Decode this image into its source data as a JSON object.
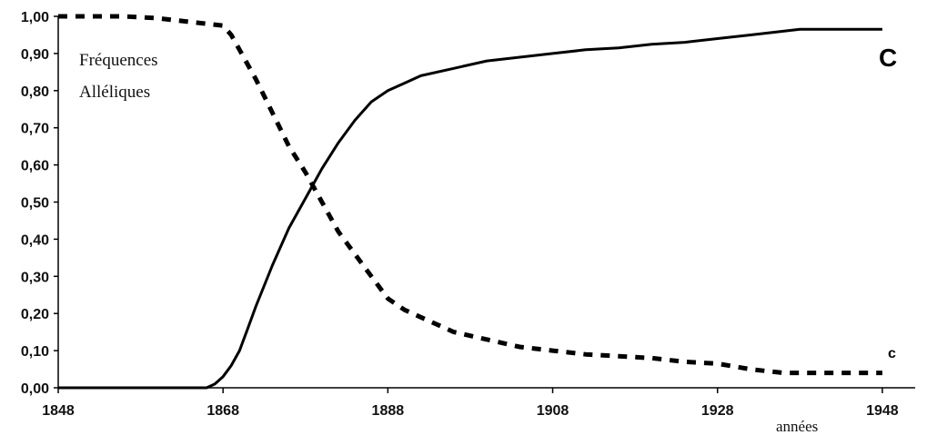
{
  "chart_data": {
    "type": "line",
    "title": "",
    "annotation": [
      "Fréquences",
      "Alléliques"
    ],
    "xlabel": "années",
    "ylabel": "",
    "xlim": [
      1848,
      1950
    ],
    "ylim": [
      0,
      1
    ],
    "x_ticks": [
      "1848",
      "1868",
      "1888",
      "1908",
      "1928",
      "1948"
    ],
    "y_ticks": [
      "0,00",
      "0,10",
      "0,20",
      "0,30",
      "0,40",
      "0,50",
      "0,60",
      "0,70",
      "0,80",
      "0,90",
      "1,00"
    ],
    "grid": false,
    "series": [
      {
        "name": "C",
        "style": "solid",
        "color": "#000000",
        "x": [
          1848,
          1860,
          1866,
          1867,
          1868,
          1869,
          1870,
          1871,
          1872,
          1874,
          1876,
          1878,
          1880,
          1882,
          1884,
          1886,
          1888,
          1890,
          1892,
          1896,
          1900,
          1904,
          1908,
          1912,
          1916,
          1920,
          1924,
          1928,
          1932,
          1938,
          1942,
          1948
        ],
        "values": [
          0.0,
          0.0,
          0.0,
          0.01,
          0.03,
          0.06,
          0.1,
          0.16,
          0.22,
          0.33,
          0.43,
          0.51,
          0.59,
          0.66,
          0.72,
          0.77,
          0.8,
          0.82,
          0.84,
          0.86,
          0.88,
          0.89,
          0.9,
          0.91,
          0.915,
          0.925,
          0.93,
          0.94,
          0.95,
          0.965,
          0.965,
          0.965
        ]
      },
      {
        "name": "c",
        "style": "dashed",
        "color": "#000000",
        "x": [
          1848,
          1856,
          1860,
          1864,
          1866,
          1868,
          1869,
          1870,
          1872,
          1874,
          1876,
          1878,
          1880,
          1882,
          1884,
          1886,
          1888,
          1890,
          1892,
          1896,
          1900,
          1904,
          1908,
          1912,
          1916,
          1920,
          1924,
          1928,
          1932,
          1936,
          1940,
          1944,
          1948
        ],
        "values": [
          1.0,
          1.0,
          0.995,
          0.985,
          0.98,
          0.975,
          0.95,
          0.91,
          0.83,
          0.74,
          0.65,
          0.58,
          0.5,
          0.42,
          0.36,
          0.3,
          0.24,
          0.21,
          0.19,
          0.15,
          0.13,
          0.11,
          0.1,
          0.09,
          0.085,
          0.08,
          0.07,
          0.065,
          0.05,
          0.04,
          0.04,
          0.04,
          0.04
        ]
      }
    ]
  }
}
